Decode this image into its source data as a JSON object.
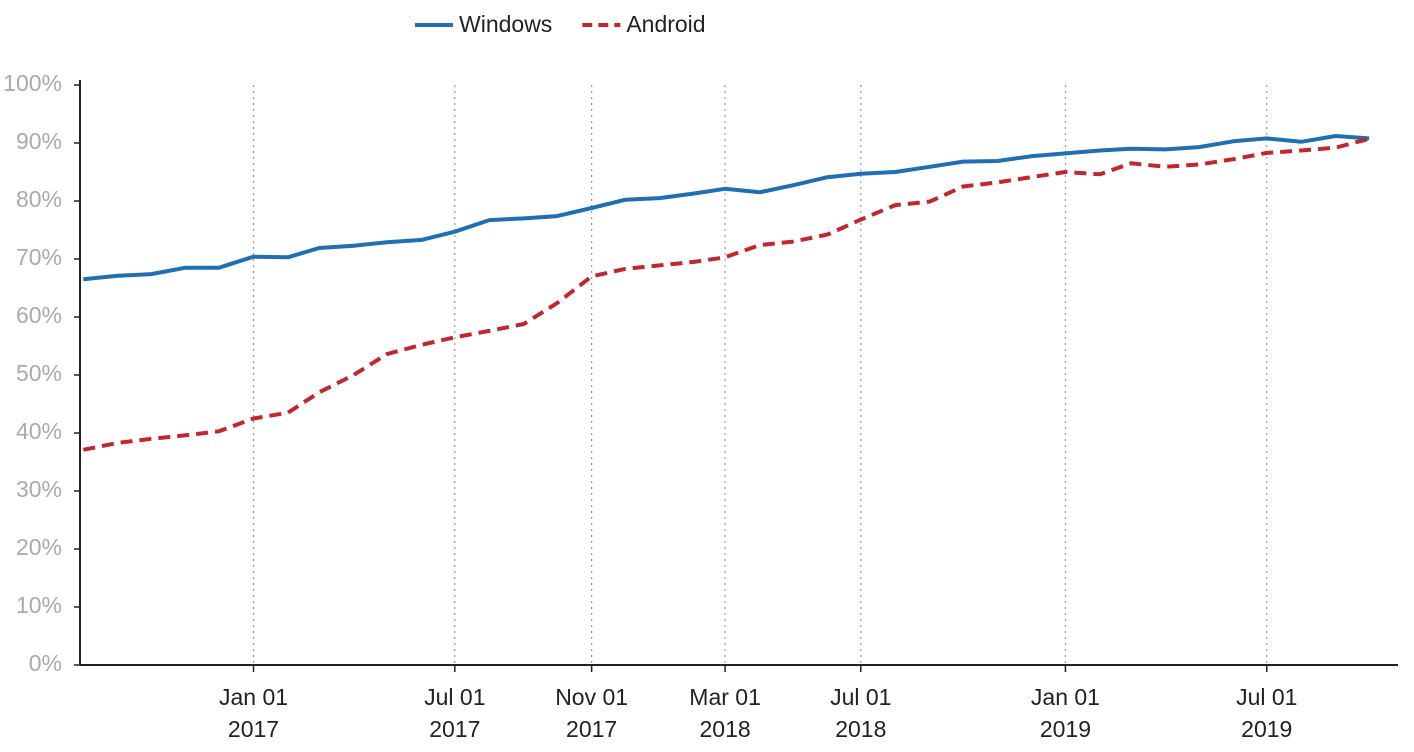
{
  "chart_data": {
    "type": "line",
    "x": [
      "2016-08-01",
      "2016-09-01",
      "2016-10-01",
      "2016-11-01",
      "2016-12-01",
      "2017-01-01",
      "2017-02-01",
      "2017-03-01",
      "2017-04-01",
      "2017-05-01",
      "2017-06-01",
      "2017-07-01",
      "2017-08-01",
      "2017-09-01",
      "2017-10-01",
      "2017-11-01",
      "2017-12-01",
      "2018-01-01",
      "2018-02-01",
      "2018-03-01",
      "2018-04-01",
      "2018-05-01",
      "2018-06-01",
      "2018-07-01",
      "2018-08-01",
      "2018-09-01",
      "2018-10-01",
      "2018-11-01",
      "2018-12-01",
      "2019-01-01",
      "2019-02-01",
      "2019-03-01",
      "2019-04-01",
      "2019-05-01",
      "2019-06-01",
      "2019-07-01",
      "2019-08-01",
      "2019-09-01",
      "2019-10-01"
    ],
    "series": [
      {
        "name": "Windows",
        "color": "#1f6fb4",
        "dash": false,
        "values": [
          66.5,
          67.1,
          67.4,
          68.5,
          68.5,
          70.4,
          70.3,
          71.9,
          72.3,
          72.9,
          73.3,
          74.7,
          76.7,
          77.0,
          77.4,
          78.8,
          80.2,
          80.5,
          81.3,
          82.1,
          81.5,
          82.7,
          84.1,
          84.7,
          85.0,
          85.9,
          86.8,
          86.9,
          87.7,
          88.2,
          88.7,
          89.0,
          88.9,
          89.3,
          90.3,
          90.8,
          90.2,
          91.2,
          90.8
        ]
      },
      {
        "name": "Android",
        "color": "#c1272d",
        "dash": true,
        "values": [
          37.1,
          38.3,
          39.0,
          39.6,
          40.3,
          42.5,
          43.5,
          47.0,
          50.0,
          53.6,
          55.2,
          56.5,
          57.6,
          58.8,
          62.4,
          67.0,
          68.3,
          68.9,
          69.5,
          70.3,
          72.4,
          73.0,
          74.2,
          76.8,
          79.3,
          79.9,
          82.5,
          83.2,
          84.1,
          85.0,
          84.6,
          86.5,
          85.9,
          86.3,
          87.2,
          88.3,
          88.7,
          89.2,
          90.7
        ]
      }
    ],
    "xlim": [
      "2016-07-29",
      "2019-10-27"
    ],
    "xticks": [
      {
        "value": "2017-01-01",
        "label": "Jan 01\n2017"
      },
      {
        "value": "2017-07-01",
        "label": "Jul 01\n2017"
      },
      {
        "value": "2017-11-01",
        "label": "Nov 01\n2017"
      },
      {
        "value": "2018-03-01",
        "label": "Mar 01\n2018"
      },
      {
        "value": "2018-07-01",
        "label": "Jul 01\n2018"
      },
      {
        "value": "2019-01-01",
        "label": "Jan 01\n2019"
      },
      {
        "value": "2019-07-01",
        "label": "Jul 01\n2019"
      }
    ],
    "ylim": [
      0,
      100
    ],
    "yticks": [
      {
        "value": 0,
        "label": "0%"
      },
      {
        "value": 10,
        "label": "10%"
      },
      {
        "value": 20,
        "label": "20%"
      },
      {
        "value": 30,
        "label": "30%"
      },
      {
        "value": 40,
        "label": "40%"
      },
      {
        "value": 50,
        "label": "50%"
      },
      {
        "value": 60,
        "label": "60%"
      },
      {
        "value": 70,
        "label": "70%"
      },
      {
        "value": 80,
        "label": "80%"
      },
      {
        "value": 90,
        "label": "90%"
      },
      {
        "value": 100,
        "label": "100%"
      }
    ],
    "x_grid": true,
    "legend": "top"
  }
}
